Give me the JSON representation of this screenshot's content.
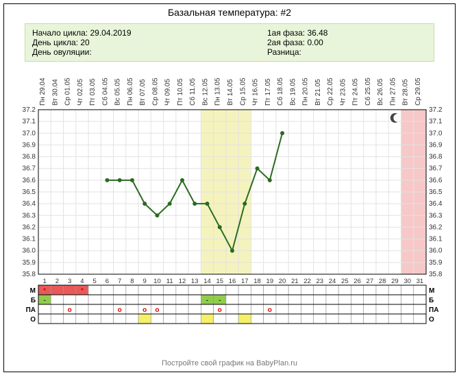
{
  "title": "Базальная температура: #2",
  "info_left": {
    "start_label": "Начало цикла:",
    "start_value": "29.04.2019",
    "day_label": "День цикла:",
    "day_value": "20",
    "ovu_label": "День овуляции:",
    "ovu_value": ""
  },
  "info_right": {
    "phase1_label": "1ая фаза:",
    "phase1_value": "36.48",
    "phase2_label": "2ая фаза:",
    "phase2_value": "0.00",
    "diff_label": "Разница:",
    "diff_value": ""
  },
  "chart": {
    "type": "line",
    "y_ticks": [
      35.8,
      35.9,
      36.0,
      36.1,
      36.2,
      36.3,
      36.4,
      36.5,
      36.6,
      36.7,
      36.8,
      36.9,
      37.0,
      37.1,
      37.2
    ],
    "ylim": [
      35.8,
      37.2
    ],
    "days": 31,
    "day_labels": [
      "Пн 29.04",
      "Вт 30.04",
      "Ср 01.05",
      "Чт 02.05",
      "Пт 03.05",
      "Сб 04.05",
      "Вс 05.05",
      "Пн 06.05",
      "Вт 07.05",
      "Ср 08.05",
      "Чт 09.05",
      "Пт 10.05",
      "Сб 11.05",
      "Вс 12.05",
      "Пн 13.05",
      "Вт 14.05",
      "Ср 15.05",
      "Чт 16.05",
      "Пт 17.05",
      "Сб 18.05",
      "Вс 19.05",
      "Пн 20.05",
      "Вт 21.05",
      "Ср 22.05",
      "Чт 23.05",
      "Пт 24.05",
      "Сб 25.05",
      "Вс 26.05",
      "Пн 27.05",
      "Вт 28.05",
      "Ср 29.05"
    ],
    "data": [
      {
        "x": 6,
        "y": 36.6
      },
      {
        "x": 7,
        "y": 36.6
      },
      {
        "x": 8,
        "y": 36.6
      },
      {
        "x": 9,
        "y": 36.4
      },
      {
        "x": 10,
        "y": 36.3
      },
      {
        "x": 11,
        "y": 36.4
      },
      {
        "x": 12,
        "y": 36.6
      },
      {
        "x": 13,
        "y": 36.4
      },
      {
        "x": 14,
        "y": 36.4
      },
      {
        "x": 15,
        "y": 36.2
      },
      {
        "x": 16,
        "y": 36.0
      },
      {
        "x": 17,
        "y": 36.4
      },
      {
        "x": 18,
        "y": 36.7
      },
      {
        "x": 19,
        "y": 36.6
      },
      {
        "x": 20,
        "y": 37.0
      }
    ],
    "highlight_band": {
      "from": 14,
      "to": 17,
      "color": "#f5f3bd"
    },
    "right_band": {
      "from": 30,
      "to": 31,
      "color": "#f6c8c8"
    },
    "line_color": "#2a6b1f",
    "line_width": 2,
    "marker_radius": 3,
    "marker_color": "#2a6b1f",
    "grid_color_major": "#bcbcbc",
    "grid_color_minor": "#e2e2e2",
    "background": "#ffffff",
    "axis_font_size": 10,
    "label_color": "#333333",
    "moon_day": 29
  },
  "rows": {
    "labels": [
      "М",
      "Б",
      "ПА",
      "О"
    ],
    "M": {
      "fills": {
        "1": "#e85a5a",
        "2": "#e85a5a",
        "3": "#e85a5a",
        "4": "#e85a5a"
      },
      "marks": {
        "1": "*",
        "4": "*"
      },
      "mark_color": "#d00"
    },
    "B": {
      "fills": {
        "1": "#8fce4b",
        "14": "#8fce4b",
        "15": "#8fce4b"
      },
      "marks": {
        "1": "-",
        "14": "-",
        "15": "-"
      },
      "mark_color": "#333"
    },
    "PA": {
      "fills": {},
      "marks": {
        "3": "o",
        "7": "o",
        "9": "o",
        "10": "o",
        "15": "o",
        "19": "o"
      },
      "mark_color": "#d00"
    },
    "O": {
      "fills": {
        "9": "#f5f06a",
        "14": "#f5f06a",
        "17": "#f5f06a"
      },
      "marks": {},
      "mark_color": "#333"
    }
  },
  "footer": "Постройте свой график на BabyPlan.ru"
}
